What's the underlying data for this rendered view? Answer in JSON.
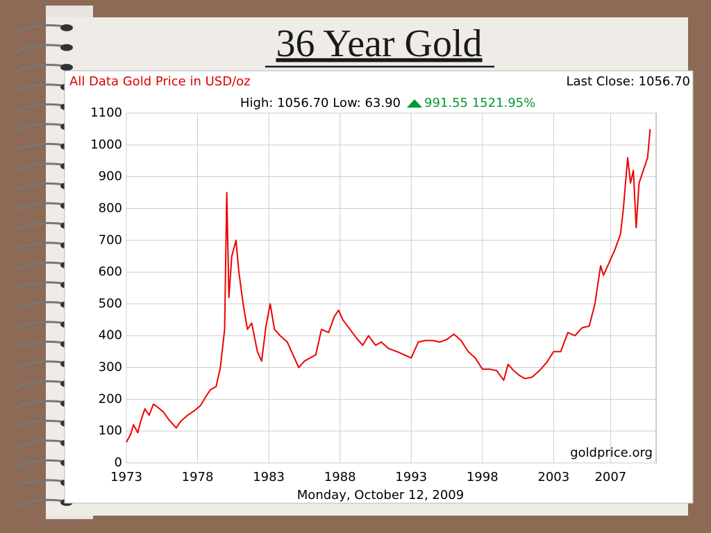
{
  "slide": {
    "title": "36 Year Gold"
  },
  "chart_data": {
    "type": "line",
    "title": "All Data Gold Price in USD/oz",
    "last_close": "Last Close: 1056.70",
    "high_low": "High: 1056.70 Low: 63.90",
    "change": "991.55 1521.95%",
    "source": "goldprice.org",
    "x_label": "Monday, October 12, 2009",
    "xlim": [
      1973,
      2010.2
    ],
    "xticks": [
      1973,
      1978,
      1983,
      1988,
      1993,
      1998,
      2003,
      2007
    ],
    "ylim": [
      0,
      1100
    ],
    "yticks": [
      0,
      100,
      200,
      300,
      400,
      500,
      600,
      700,
      800,
      900,
      1000,
      1100
    ],
    "grid": true,
    "series": [
      {
        "name": "Gold",
        "color": "#ee0000",
        "x": [
          1973.0,
          1973.3,
          1973.5,
          1973.8,
          1974.0,
          1974.3,
          1974.6,
          1974.9,
          1975.2,
          1975.6,
          1976.0,
          1976.5,
          1976.8,
          1977.3,
          1977.8,
          1978.2,
          1978.6,
          1978.9,
          1979.3,
          1979.6,
          1979.9,
          1980.05,
          1980.2,
          1980.4,
          1980.7,
          1980.9,
          1981.2,
          1981.5,
          1981.8,
          1982.2,
          1982.5,
          1982.8,
          1983.1,
          1983.4,
          1983.8,
          1984.3,
          1984.7,
          1985.1,
          1985.5,
          1985.9,
          1986.3,
          1986.7,
          1987.2,
          1987.6,
          1987.9,
          1988.2,
          1988.7,
          1989.2,
          1989.6,
          1990.0,
          1990.5,
          1990.9,
          1991.4,
          1992.0,
          1992.5,
          1993.0,
          1993.5,
          1994.0,
          1994.5,
          1995.0,
          1995.5,
          1996.0,
          1996.5,
          1997.0,
          1997.5,
          1998.0,
          1998.5,
          1999.0,
          1999.5,
          1999.8,
          2000.2,
          2000.6,
          2001.0,
          2001.5,
          2002.0,
          2002.5,
          2003.0,
          2003.5,
          2004.0,
          2004.5,
          2005.0,
          2005.5,
          2005.9,
          2006.3,
          2006.5,
          2006.9,
          2007.3,
          2007.7,
          2007.9,
          2008.2,
          2008.4,
          2008.6,
          2008.8,
          2009.0,
          2009.3,
          2009.6,
          2009.78
        ],
        "values": [
          65,
          90,
          120,
          95,
          130,
          170,
          150,
          185,
          175,
          160,
          135,
          110,
          130,
          150,
          165,
          180,
          210,
          230,
          240,
          300,
          420,
          850,
          520,
          650,
          700,
          600,
          500,
          420,
          440,
          350,
          320,
          430,
          500,
          420,
          400,
          380,
          340,
          300,
          320,
          330,
          340,
          420,
          410,
          460,
          480,
          450,
          420,
          390,
          370,
          400,
          370,
          380,
          360,
          350,
          340,
          330,
          380,
          385,
          385,
          380,
          388,
          405,
          385,
          350,
          330,
          295,
          295,
          290,
          260,
          310,
          290,
          275,
          265,
          270,
          290,
          315,
          350,
          350,
          410,
          400,
          425,
          430,
          500,
          620,
          590,
          630,
          670,
          720,
          800,
          960,
          880,
          920,
          740,
          880,
          920,
          960,
          1050
        ]
      }
    ]
  }
}
